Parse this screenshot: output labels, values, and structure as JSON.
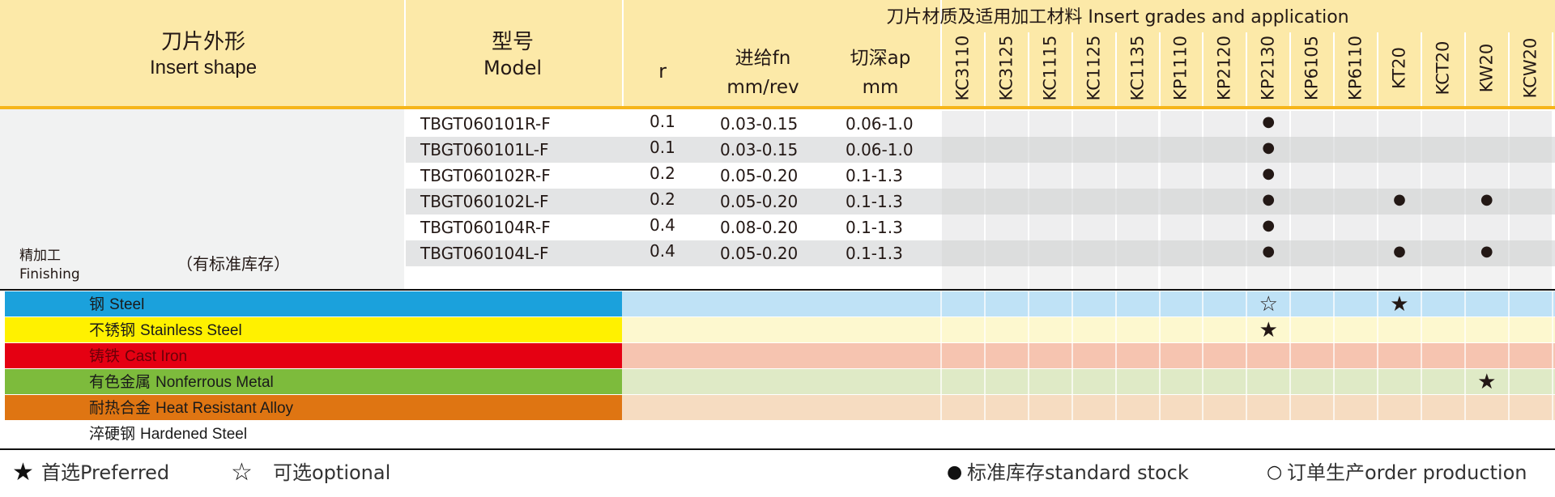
{
  "header": {
    "shape": "刀片外形",
    "shape_en": "Insert shape",
    "model": "型号",
    "model_en": "Model",
    "r": "r",
    "fn": "进给fn",
    "fn_unit": "mm/rev",
    "ap": "切深ap",
    "ap_unit": "mm",
    "grades_title": "刀片材质及适用加工材料 Insert grades and application",
    "grades": [
      "KC3110",
      "KC3125",
      "KC1115",
      "KC1125",
      "KC1135",
      "KP1110",
      "KP2120",
      "KP2130",
      "KP6105",
      "KP6110",
      "KT20",
      "KCT20",
      "KW20",
      "KCW20"
    ],
    "color": "#fce9a8",
    "rule_color": "#f6b51a"
  },
  "shape_note": "（有标准库存）",
  "finishing": "精加工",
  "finishing_en": "Finishing",
  "rows": [
    {
      "model": "TBGT060101R-F",
      "r": 0.1,
      "fn": "0.03-0.15",
      "ap": "0.06-1.0",
      "cells": {
        "KP2130": "●"
      }
    },
    {
      "model": "TBGT060101L-F",
      "r": 0.1,
      "fn": "0.03-0.15",
      "ap": "0.06-1.0",
      "cells": {
        "KP2130": "●"
      }
    },
    {
      "model": "TBGT060102R-F",
      "r": 0.2,
      "fn": "0.05-0.20",
      "ap": "0.1-1.3",
      "cells": {
        "KP2130": "●"
      }
    },
    {
      "model": "TBGT060102L-F",
      "r": 0.2,
      "fn": "0.05-0.20",
      "ap": "0.1-1.3",
      "cells": {
        "KP2130": "●",
        "KT20": "●",
        "KW20": "●"
      }
    },
    {
      "model": "TBGT060104R-F",
      "r": 0.4,
      "fn": "0.08-0.20",
      "ap": "0.1-1.3",
      "cells": {
        "KP2130": "●"
      }
    },
    {
      "model": "TBGT060104L-F",
      "r": 0.4,
      "fn": "0.05-0.20",
      "ap": "0.1-1.3",
      "cells": {
        "KP2130": "●",
        "KT20": "●",
        "KW20": "●"
      }
    }
  ],
  "materials": [
    {
      "name": "钢",
      "name_en": "Steel",
      "color": "#1ba1dc",
      "tint": "#bfe2f6",
      "text_color": "#1a1a1a",
      "marks": {
        "KP2130": "☆",
        "KT20": "★"
      }
    },
    {
      "name": "不锈钢",
      "name_en": "Stainless Steel",
      "color": "#fff100",
      "tint": "#fdf8cf",
      "text_color": "#1a1a1a",
      "marks": {
        "KP2130": "★"
      }
    },
    {
      "name": "铸铁",
      "name_en": "Cast Iron",
      "color": "#e50012",
      "tint": "#f6c4b0",
      "text_color": "#6b0008",
      "marks": {}
    },
    {
      "name": "有色金属",
      "name_en": "Nonferrous Metal",
      "color": "#7dbb3c",
      "tint": "#dfeac6",
      "text_color": "#1a1a1a",
      "marks": {
        "KW20": "★"
      }
    },
    {
      "name": "耐热合金",
      "name_en": "Heat Resistant Alloy",
      "color": "#df7512",
      "tint": "#f6dcc1",
      "text_color": "#1a1a1a",
      "marks": {}
    },
    {
      "name": "淬硬钢",
      "name_en": "Hardened Steel",
      "color": "#ffffff",
      "tint": "#ffffff",
      "text_color": "#1a1a1a",
      "marks": {}
    }
  ],
  "legend": [
    {
      "symbol": "★",
      "label": "首选Preferred"
    },
    {
      "symbol": "☆",
      "label": "可选optional"
    },
    {
      "symbol": "●",
      "label": "标准库存standard stock"
    },
    {
      "symbol": "○",
      "label": "订单生产order production"
    }
  ]
}
